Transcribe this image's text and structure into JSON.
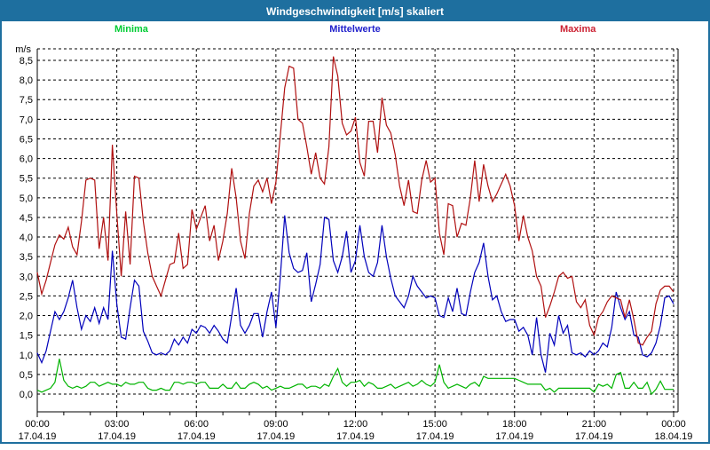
{
  "window": {
    "title": "Windgeschwindigkeit [m/s] skaliert"
  },
  "colors": {
    "title_bar_bg": "#1e6f9f",
    "title_text": "#ffffff",
    "window_border": "#1e6f9f",
    "plot_background": "#ffffff",
    "grid": "#000000",
    "axis": "#000000",
    "label_text": "#000000",
    "minima_line": "#00b400",
    "minima_label": "#00cc33",
    "mittelwerte_line": "#0000bb",
    "mittelwerte_label": "#2222cc",
    "maxima_line": "#b01010",
    "maxima_label": "#cc2233"
  },
  "axis": {
    "unit_label": "m/s",
    "y_ticks": [
      "0,0",
      "0,5",
      "1,0",
      "1,5",
      "2,0",
      "2,5",
      "3,0",
      "3,5",
      "4,0",
      "4,5",
      "5,0",
      "5,5",
      "6,0",
      "6,5",
      "7,0",
      "7,5",
      "8,0",
      "8,5"
    ],
    "x_ticks": [
      {
        "time": "00:00",
        "date": "17.04.19"
      },
      {
        "time": "03:00",
        "date": "17.04.19"
      },
      {
        "time": "06:00",
        "date": "17.04.19"
      },
      {
        "time": "09:00",
        "date": "17.04.19"
      },
      {
        "time": "12:00",
        "date": "17.04.19"
      },
      {
        "time": "15:00",
        "date": "17.04.19"
      },
      {
        "time": "18:00",
        "date": "17.04.19"
      },
      {
        "time": "21:00",
        "date": "17.04.19"
      },
      {
        "time": "00:00",
        "date": "18.04.19"
      }
    ]
  },
  "chart_data": {
    "type": "line",
    "title": "Windgeschwindigkeit [m/s] skaliert",
    "ylabel": "m/s",
    "ylim": [
      0,
      8.75
    ],
    "y_gridline_step": 0.5,
    "x_unit": "hours",
    "x_range": [
      0,
      24
    ],
    "x_major_gridline_step_hours": 3,
    "x_minor_tick_step_hours": 1,
    "sample_interval_minutes": 10,
    "grid": true,
    "legend_position": "top",
    "legend": [
      "Minima",
      "Mittelwerte",
      "Maxima"
    ],
    "series": [
      {
        "name": "Minima",
        "color": "#00b400",
        "values": [
          0.1,
          0.05,
          0.1,
          0.15,
          0.3,
          0.9,
          0.35,
          0.2,
          0.15,
          0.2,
          0.15,
          0.2,
          0.3,
          0.3,
          0.2,
          0.25,
          0.3,
          0.25,
          0.25,
          0.2,
          0.3,
          0.25,
          0.25,
          0.3,
          0.3,
          0.15,
          0.1,
          0.1,
          0.15,
          0.1,
          0.1,
          0.3,
          0.3,
          0.25,
          0.3,
          0.3,
          0.25,
          0.3,
          0.3,
          0.15,
          0.15,
          0.15,
          0.25,
          0.15,
          0.15,
          0.3,
          0.15,
          0.15,
          0.25,
          0.3,
          0.25,
          0.15,
          0.2,
          0.1,
          0.15,
          0.2,
          0.15,
          0.15,
          0.2,
          0.25,
          0.25,
          0.15,
          0.2,
          0.2,
          0.15,
          0.25,
          0.2,
          0.45,
          0.65,
          0.3,
          0.2,
          0.3,
          0.3,
          0.35,
          0.2,
          0.3,
          0.25,
          0.15,
          0.15,
          0.2,
          0.25,
          0.15,
          0.2,
          0.25,
          0.3,
          0.2,
          0.25,
          0.35,
          0.25,
          0.2,
          0.3,
          0.75,
          0.3,
          0.15,
          0.2,
          0.25,
          0.2,
          0.15,
          0.25,
          0.3,
          0.2,
          0.45,
          0.4,
          0.4,
          0.4,
          0.4,
          0.4,
          0.4,
          0.4,
          0.35,
          0.3,
          0.25,
          0.25,
          0.25,
          0.25,
          0.1,
          0.15,
          0.05,
          0.15,
          0.15,
          0.15,
          0.15,
          0.15,
          0.15,
          0.15,
          0.15,
          0.05,
          0.25,
          0.2,
          0.25,
          0.15,
          0.5,
          0.55,
          0.15,
          0.15,
          0.3,
          0.15,
          0.15,
          0.3,
          0.0,
          0.12,
          0.33,
          0.12,
          0.12,
          0.12
        ]
      },
      {
        "name": "Mittelwerte",
        "color": "#0000bb",
        "values": [
          1.05,
          0.8,
          1.1,
          1.6,
          2.1,
          1.9,
          2.1,
          2.45,
          2.9,
          2.2,
          1.65,
          2.0,
          1.85,
          2.2,
          1.8,
          2.2,
          1.9,
          3.65,
          2.3,
          1.45,
          1.4,
          2.2,
          2.9,
          2.75,
          1.6,
          1.35,
          1.05,
          1.0,
          1.05,
          1.0,
          1.1,
          1.4,
          1.25,
          1.45,
          1.3,
          1.65,
          1.55,
          1.75,
          1.7,
          1.55,
          1.75,
          1.6,
          1.4,
          1.3,
          2.0,
          2.7,
          1.75,
          1.55,
          1.75,
          2.05,
          2.05,
          1.45,
          2.1,
          2.6,
          1.7,
          3.0,
          4.55,
          3.6,
          3.2,
          3.1,
          3.15,
          3.6,
          2.35,
          2.8,
          3.3,
          4.5,
          4.45,
          3.4,
          3.1,
          3.5,
          4.15,
          3.1,
          3.4,
          4.3,
          3.5,
          3.1,
          3.0,
          3.35,
          4.3,
          3.5,
          2.95,
          2.5,
          2.35,
          2.2,
          2.5,
          3.0,
          2.75,
          2.6,
          2.45,
          2.5,
          2.45,
          2.0,
          1.95,
          2.45,
          2.1,
          2.7,
          2.05,
          2.0,
          2.6,
          3.1,
          3.35,
          3.85,
          3.0,
          2.4,
          2.5,
          2.1,
          1.85,
          1.9,
          1.9,
          1.6,
          1.7,
          1.5,
          1.0,
          1.95,
          1.0,
          0.55,
          1.55,
          1.25,
          2.0,
          1.55,
          1.75,
          1.05,
          1.0,
          1.05,
          0.95,
          1.1,
          1.0,
          1.1,
          1.3,
          1.2,
          1.7,
          2.6,
          2.2,
          1.9,
          2.1,
          1.5,
          1.45,
          1.0,
          0.95,
          1.05,
          1.3,
          1.75,
          2.45,
          2.5,
          2.3
        ]
      },
      {
        "name": "Maxima",
        "color": "#b01010",
        "values": [
          3.1,
          2.55,
          2.9,
          3.35,
          3.8,
          4.05,
          3.95,
          4.25,
          3.75,
          3.55,
          4.4,
          5.45,
          5.5,
          5.45,
          3.7,
          4.5,
          3.4,
          6.35,
          4.6,
          3.0,
          4.65,
          3.3,
          5.55,
          5.5,
          4.4,
          3.6,
          3.0,
          2.75,
          2.5,
          2.9,
          3.3,
          3.35,
          4.1,
          3.2,
          3.3,
          4.7,
          4.2,
          4.5,
          4.8,
          3.9,
          4.3,
          3.4,
          3.9,
          4.6,
          5.75,
          5.0,
          3.9,
          3.45,
          4.6,
          5.3,
          5.45,
          5.15,
          5.5,
          4.85,
          5.4,
          6.6,
          7.8,
          8.35,
          8.3,
          7.0,
          6.9,
          6.3,
          5.6,
          6.15,
          5.5,
          5.35,
          6.3,
          8.6,
          8.1,
          6.9,
          6.6,
          6.7,
          7.05,
          5.9,
          5.55,
          6.95,
          6.95,
          6.15,
          7.55,
          6.85,
          6.65,
          6.1,
          5.3,
          4.8,
          5.45,
          4.65,
          4.6,
          5.45,
          5.95,
          5.4,
          5.5,
          4.1,
          3.55,
          4.85,
          4.8,
          4.0,
          4.35,
          4.3,
          5.0,
          5.95,
          4.9,
          5.85,
          5.3,
          4.9,
          5.1,
          5.35,
          5.6,
          5.3,
          4.8,
          3.9,
          4.55,
          4.0,
          3.65,
          3.0,
          2.75,
          1.95,
          2.25,
          2.6,
          3.0,
          3.1,
          2.95,
          3.0,
          2.35,
          2.2,
          2.4,
          1.75,
          1.5,
          1.95,
          2.1,
          2.35,
          2.5,
          2.45,
          2.4,
          1.95,
          2.4,
          1.9,
          1.3,
          1.25,
          1.45,
          1.6,
          2.3,
          2.65,
          2.75,
          2.75,
          2.6
        ]
      }
    ]
  }
}
